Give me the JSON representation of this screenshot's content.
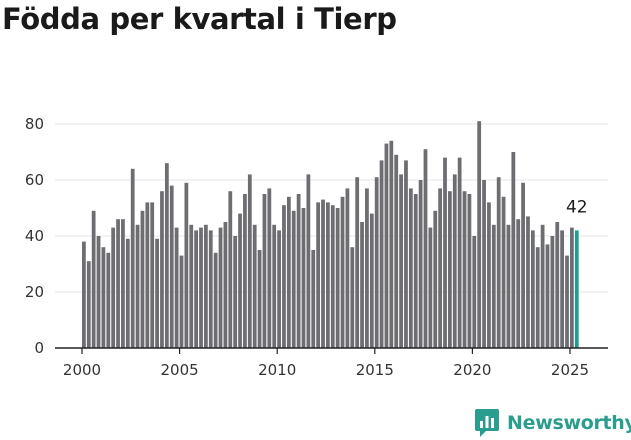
{
  "title": "Födda per kvartal i Tierp",
  "brand": {
    "name": "Newsworthy",
    "color": "#2a9d8f",
    "icon": "chart-logo-icon"
  },
  "colors": {
    "bar": "#6e6d72",
    "highlight": "#1f9e8d",
    "axis": "#222222",
    "grid": "#e6e6e6"
  },
  "chart_data": {
    "type": "bar",
    "title": "Födda per kvartal i Tierp",
    "xlabel": "",
    "ylabel": "",
    "x_ticks": [
      2000,
      2005,
      2010,
      2015,
      2020,
      2025
    ],
    "y_ticks": [
      0,
      20,
      40,
      60,
      80
    ],
    "ylim": [
      0,
      85
    ],
    "grid": true,
    "highlight_label": "42",
    "bars": [
      {
        "year": 2000,
        "values": [
          38,
          31,
          49,
          40
        ]
      },
      {
        "year": 2001,
        "values": [
          36,
          34,
          43,
          46
        ]
      },
      {
        "year": 2002,
        "values": [
          46,
          39,
          64,
          44
        ]
      },
      {
        "year": 2003,
        "values": [
          49,
          52,
          52,
          39
        ]
      },
      {
        "year": 2004,
        "values": [
          56,
          66,
          58,
          43
        ]
      },
      {
        "year": 2005,
        "values": [
          33,
          59,
          44,
          42
        ]
      },
      {
        "year": 2006,
        "values": [
          43,
          44,
          42,
          34
        ]
      },
      {
        "year": 2007,
        "values": [
          43,
          45,
          56,
          40
        ]
      },
      {
        "year": 2008,
        "values": [
          48,
          55,
          62,
          44
        ]
      },
      {
        "year": 2009,
        "values": [
          35,
          55,
          57,
          44
        ]
      },
      {
        "year": 2010,
        "values": [
          42,
          51,
          54,
          49
        ]
      },
      {
        "year": 2011,
        "values": [
          55,
          50,
          62,
          35
        ]
      },
      {
        "year": 2012,
        "values": [
          52,
          53,
          52,
          51
        ]
      },
      {
        "year": 2013,
        "values": [
          50,
          54,
          57,
          36
        ]
      },
      {
        "year": 2014,
        "values": [
          61,
          45,
          57,
          48
        ]
      },
      {
        "year": 2015,
        "values": [
          61,
          67,
          73,
          74
        ]
      },
      {
        "year": 2016,
        "values": [
          69,
          62,
          67,
          57
        ]
      },
      {
        "year": 2017,
        "values": [
          55,
          60,
          71,
          43
        ]
      },
      {
        "year": 2018,
        "values": [
          49,
          57,
          68,
          56
        ]
      },
      {
        "year": 2019,
        "values": [
          62,
          68,
          56,
          55
        ]
      },
      {
        "year": 2020,
        "values": [
          40,
          81,
          60,
          52
        ]
      },
      {
        "year": 2021,
        "values": [
          44,
          61,
          54,
          44
        ]
      },
      {
        "year": 2022,
        "values": [
          70,
          46,
          59,
          47
        ]
      },
      {
        "year": 2023,
        "values": [
          42,
          36,
          44,
          37
        ]
      },
      {
        "year": 2024,
        "values": [
          40,
          45,
          42,
          33
        ]
      },
      {
        "year": 2025,
        "values": [
          43,
          42
        ]
      }
    ]
  }
}
